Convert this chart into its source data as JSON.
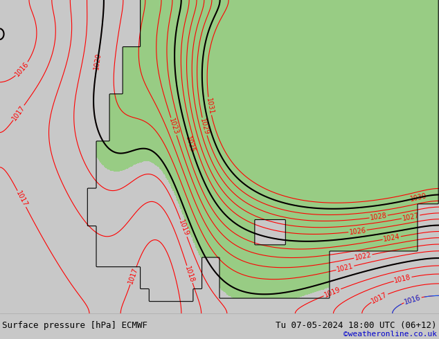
{
  "title_left": "Surface pressure [hPa] ECMWF",
  "title_right": "Tu 07-05-2024 18:00 UTC (06+12)",
  "copyright": "©weatheronline.co.uk",
  "bg_color": "#c8c8c8",
  "land_gray_color": "#c8c8c8",
  "land_green_color": "#98cc84",
  "contour_color_red": "#ff0000",
  "contour_color_blue": "#0055ff",
  "contour_color_black": "#000000",
  "bottom_bar_color": "#e0e0e0",
  "copyright_color": "#0000cc",
  "font_size_labels": 7,
  "font_size_bottom": 9,
  "font_size_copyright": 8,
  "pressure_base": 1022.0,
  "green_threshold": 1019.5
}
